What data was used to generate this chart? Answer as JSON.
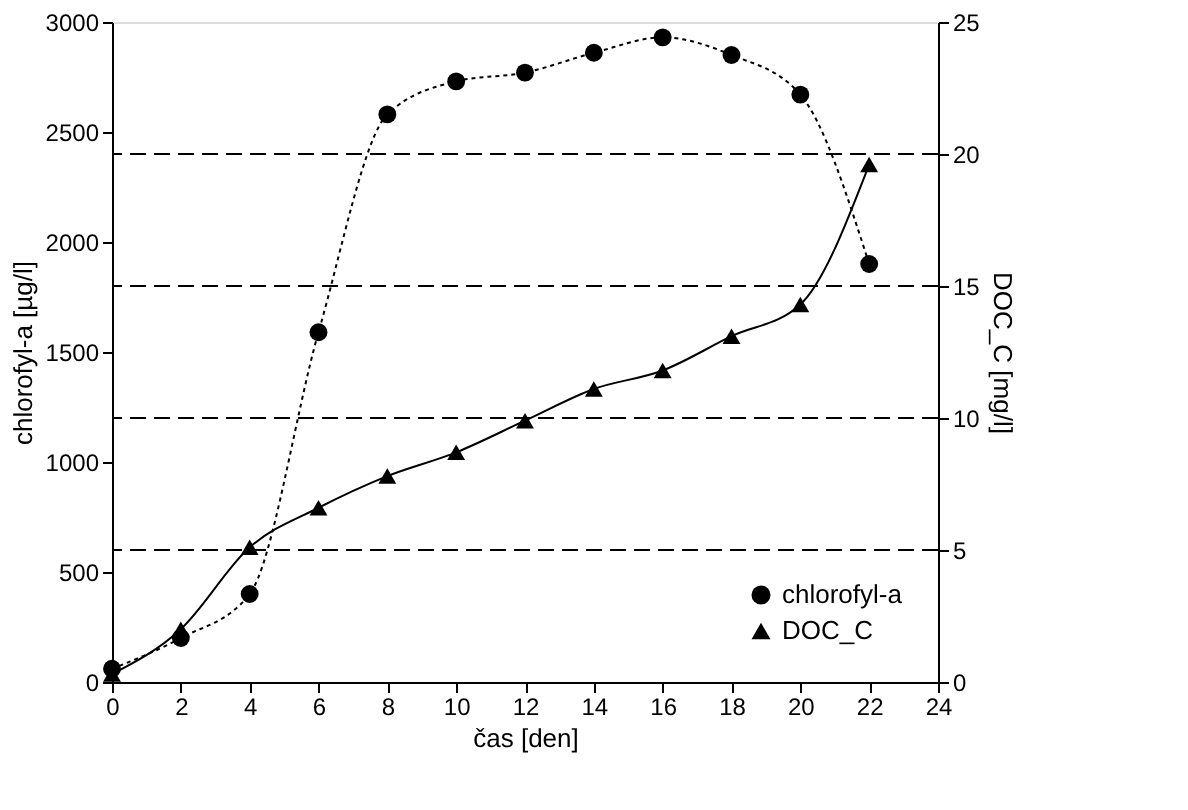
{
  "chart_data": {
    "type": "line",
    "xlabel": "čas [den]",
    "ylabel": "chlorofyl-a [µg/l]",
    "y2label": "DOC_C [mg/l]",
    "x": [
      0,
      2,
      4,
      6,
      8,
      10,
      12,
      14,
      16,
      18,
      20,
      22
    ],
    "series": [
      {
        "name": "chlorofyl-a",
        "color": "#000000",
        "marker": "circle",
        "line_style": "dotted",
        "values": [
          60,
          200,
          400,
          1590,
          2580,
          2730,
          2770,
          2860,
          2930,
          2850,
          2670,
          1900
        ]
      },
      {
        "name": "DOC_C",
        "color": "#000000",
        "marker": "triangle",
        "line_style": "solid",
        "axis": "y2",
        "values": [
          0.3,
          2.0,
          5.1,
          6.6,
          7.8,
          8.7,
          9.9,
          11.1,
          11.8,
          13.1,
          14.3,
          19.6
        ]
      }
    ],
    "xlim": [
      0,
      24
    ],
    "xticks": [
      0,
      2,
      4,
      6,
      8,
      10,
      12,
      14,
      16,
      18,
      20,
      22,
      24
    ],
    "ylim": [
      0,
      3000
    ],
    "yticks": [
      0,
      500,
      1000,
      1500,
      2000,
      2500,
      3000
    ],
    "y2lim": [
      0,
      25
    ],
    "y2ticks": [
      0,
      5,
      10,
      15,
      20,
      25
    ],
    "ref_lines": [
      {
        "axis": "y2",
        "value": 5,
        "line_style": "dashed",
        "color": "#000000"
      },
      {
        "axis": "y2",
        "value": 10,
        "line_style": "dashed",
        "color": "#000000"
      },
      {
        "axis": "y2",
        "value": 15,
        "line_style": "dashed",
        "color": "#000000"
      },
      {
        "axis": "y2",
        "value": 20,
        "line_style": "dashed",
        "color": "#000000"
      }
    ],
    "grid": false,
    "legend": "bottom right"
  }
}
